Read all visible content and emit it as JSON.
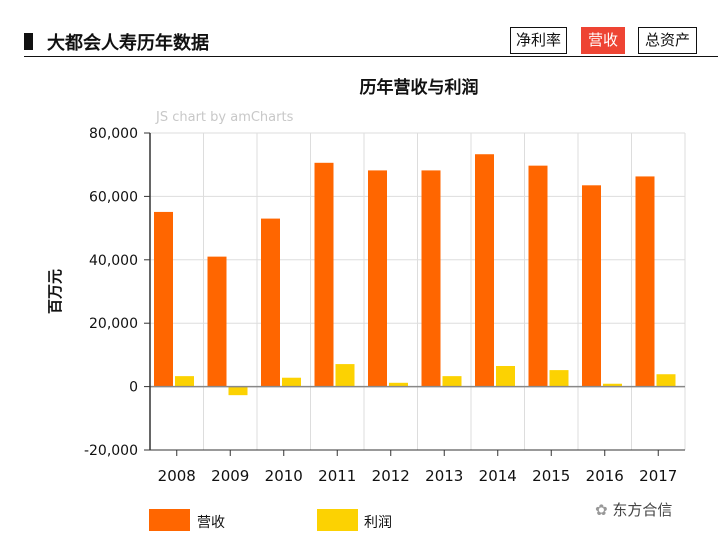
{
  "header": {
    "title": "大都会人寿历年数据",
    "tabs": [
      {
        "label": "净利率",
        "active": false
      },
      {
        "label": "营收",
        "active": true
      },
      {
        "label": "总资产",
        "active": false
      }
    ]
  },
  "credit": "JS chart by amCharts",
  "watermark": "东方合信",
  "chart_data": {
    "type": "bar",
    "title": "历年营收与利润",
    "ylabel": "百万元",
    "xlabel": "",
    "ylim": [
      -20000,
      80000
    ],
    "yticks": [
      "80,000",
      "60,000",
      "40,000",
      "20,000",
      "0",
      "-20,000"
    ],
    "ytick_values": [
      80000,
      60000,
      40000,
      20000,
      0,
      -20000
    ],
    "categories": [
      "2008",
      "2009",
      "2010",
      "2011",
      "2012",
      "2013",
      "2014",
      "2015",
      "2016",
      "2017"
    ],
    "series": [
      {
        "name": "营收",
        "color": "#ff6600",
        "values": [
          55100,
          41000,
          53000,
          70600,
          68200,
          68200,
          73300,
          69700,
          63500,
          66300
        ]
      },
      {
        "name": "利润",
        "color": "#fcd202",
        "values": [
          3300,
          -2700,
          2800,
          7100,
          1200,
          3300,
          6500,
          5200,
          900,
          3900
        ]
      }
    ],
    "grid": true,
    "legend": "bottom-left"
  }
}
